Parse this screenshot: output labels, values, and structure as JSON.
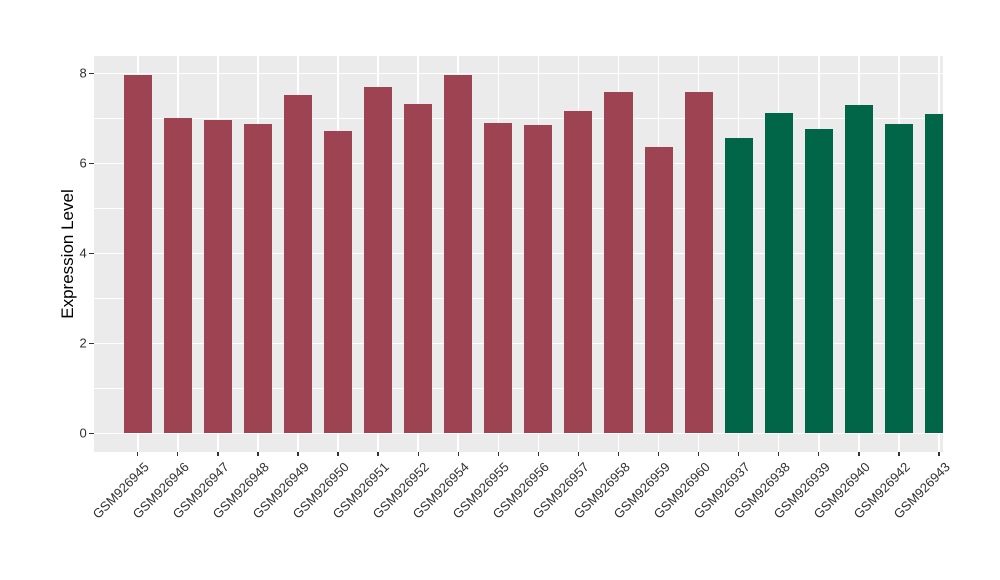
{
  "chart_data": {
    "type": "bar",
    "title": "",
    "xlabel": "",
    "ylabel": "Expression Level",
    "ylim": [
      0,
      8.4
    ],
    "yticks": [
      0,
      2,
      4,
      6,
      8
    ],
    "yticks_minor": [
      1,
      3,
      5,
      7
    ],
    "grid": "white major+minor gridlines on gray panel (ggplot style)",
    "legend": "none",
    "x_tick_rotation_deg": 45,
    "categories": [
      "GSM926945",
      "GSM926946",
      "GSM926947",
      "GSM926948",
      "GSM926949",
      "GSM926950",
      "GSM926951",
      "GSM926952",
      "GSM926954",
      "GSM926955",
      "GSM926956",
      "GSM926957",
      "GSM926958",
      "GSM926959",
      "GSM926960",
      "GSM926937",
      "GSM926938",
      "GSM926939",
      "GSM926940",
      "GSM926942",
      "GSM926943"
    ],
    "values": [
      7.97,
      7.0,
      6.97,
      6.88,
      7.52,
      6.72,
      7.7,
      7.32,
      7.97,
      6.9,
      6.86,
      7.16,
      7.58,
      6.37,
      7.58,
      6.57,
      7.11,
      6.77,
      7.3,
      6.88,
      7.1
    ],
    "bar_color_group": [
      "maroon",
      "maroon",
      "maroon",
      "maroon",
      "maroon",
      "maroon",
      "maroon",
      "maroon",
      "maroon",
      "maroon",
      "maroon",
      "maroon",
      "maroon",
      "maroon",
      "maroon",
      "green",
      "green",
      "green",
      "green",
      "green",
      "green"
    ],
    "palette": {
      "maroon": "#9E4351",
      "green": "#016647"
    },
    "panel_bg": "#EBEBEB",
    "grid_color": "#FFFFFF",
    "tick_mark_color": "#333333",
    "axis_text_color": "#303030",
    "axis_title_color": "#000000"
  }
}
